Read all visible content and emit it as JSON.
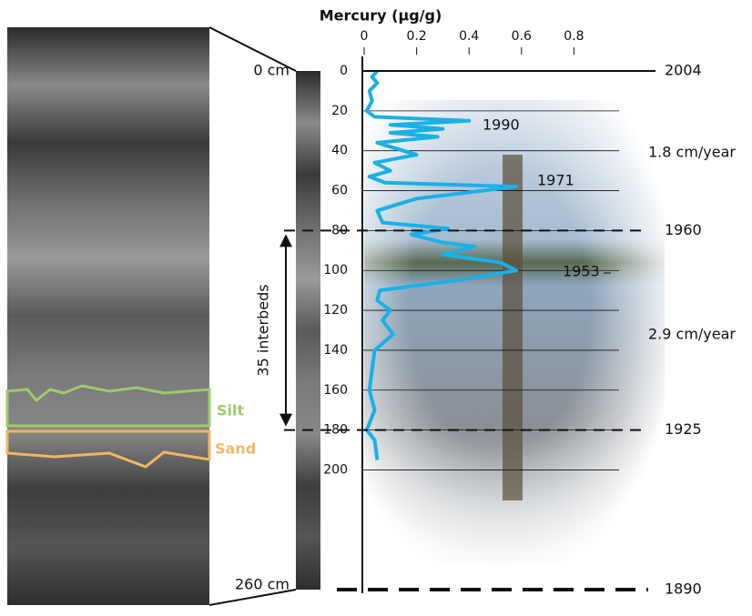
{
  "chart_data": {
    "type": "line",
    "x_label": "Mercury (µg/g)",
    "xlim": [
      0,
      1.0
    ],
    "xticks": [
      0,
      0.2,
      0.4,
      0.6,
      0.8
    ],
    "ylim": [
      0,
      260
    ],
    "yticks": [
      0,
      20,
      40,
      60,
      80,
      100,
      120,
      140,
      160,
      180,
      200
    ],
    "y_reversed": true,
    "grid": true,
    "series": [
      {
        "color": "#1ab0e8",
        "x": [
          0.05,
          0.03,
          0.05,
          0.02,
          0.03,
          0.01,
          0.04,
          0.4,
          0.1,
          0.3,
          0.1,
          0.28,
          0.05,
          0.1,
          0.2,
          0.04,
          0.1,
          0.02,
          0.08,
          0.58,
          0.2,
          0.05,
          0.07,
          0.32,
          0.18,
          0.3,
          0.42,
          0.3,
          0.52,
          0.58,
          0.35,
          0.06,
          0.05,
          0.1,
          0.07,
          0.11,
          0.04,
          0.03,
          0.02,
          0.04,
          0.01,
          0.04,
          0.05
        ],
        "values": [
          0,
          3,
          6,
          10,
          15,
          20,
          23,
          25,
          27,
          29,
          31,
          33,
          36,
          38,
          42,
          46,
          50,
          53,
          56,
          58,
          64,
          70,
          76,
          79,
          82,
          86,
          88,
          92,
          96,
          100,
          105,
          110,
          115,
          120,
          125,
          132,
          140,
          150,
          160,
          170,
          180,
          185,
          195
        ]
      }
    ],
    "peak_labels": [
      "1990",
      "1971",
      "1953"
    ],
    "date_markers": [
      {
        "label": "2004",
        "depth": 0
      },
      {
        "label": "1960",
        "depth": 80
      },
      {
        "label": "1925",
        "depth": 180
      },
      {
        "label": "1890",
        "depth": 260
      }
    ],
    "rates": [
      "1.8 cm/year",
      "2.9 cm/year"
    ],
    "core_labels": [
      "0 cm",
      "260 cm"
    ],
    "interbeds": "35 interbeds",
    "layers": [
      "Silt",
      "Sand"
    ]
  }
}
